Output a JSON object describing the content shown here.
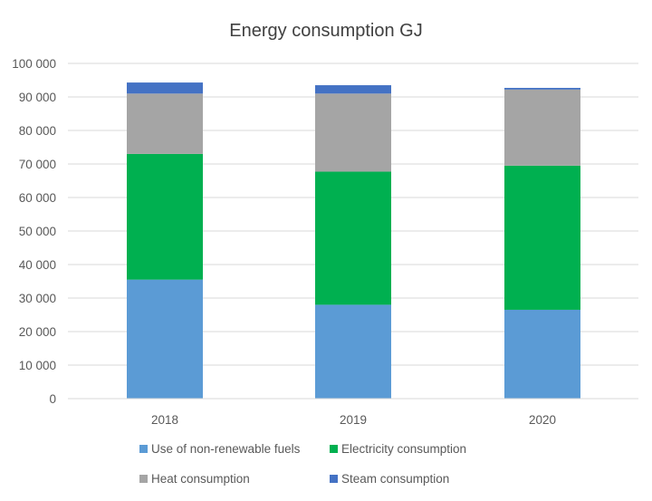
{
  "chart_data": {
    "type": "bar",
    "stacked": true,
    "title": "Energy consumption GJ",
    "xlabel": "",
    "ylabel": "",
    "categories": [
      "2018",
      "2019",
      "2020"
    ],
    "ylim": [
      0,
      100000
    ],
    "yticks": [
      0,
      10000,
      20000,
      30000,
      40000,
      50000,
      60000,
      70000,
      80000,
      90000,
      100000
    ],
    "ytick_labels": [
      "0",
      "10 000",
      "20 000",
      "30 000",
      "40 000",
      "50 000",
      "60 000",
      "70 000",
      "80 000",
      "90 000",
      "100 000"
    ],
    "grid": true,
    "legend_position": "bottom",
    "series": [
      {
        "name": "Use of non-renewable fuels",
        "color": "#5B9BD5",
        "values": [
          35500,
          28000,
          26500
        ]
      },
      {
        "name": "Electricity consumption",
        "color": "#00B050",
        "values": [
          37500,
          39700,
          43000
        ]
      },
      {
        "name": "Heat consumption",
        "color": "#A5A5A5",
        "values": [
          18000,
          23300,
          22700
        ]
      },
      {
        "name": "Steam consumption",
        "color": "#4472C4",
        "values": [
          3300,
          2500,
          500
        ]
      }
    ]
  }
}
